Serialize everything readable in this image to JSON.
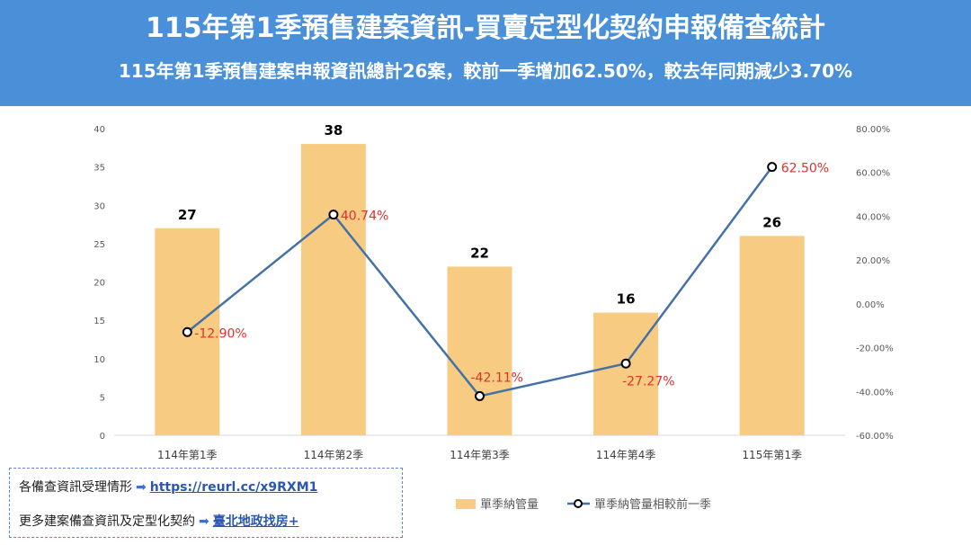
{
  "header": {
    "title": "115年第1季預售建案資訊-買賣定型化契約申報備查統計",
    "subtitle": "115年第1季預售建案申報資訊總計26案，較前一季增加62.50%，較去年同期減少3.70%",
    "background_color": "#4a90d9"
  },
  "info": {
    "line1_label": "各備查資訊受理情形",
    "line1_link": "https://reurl.cc/x9RXM1",
    "line2_label": "更多建案備查資訊及定型化契約",
    "line2_link": "臺北地政找房+"
  },
  "chart_data": {
    "type": "bar",
    "categories": [
      "114年第1季",
      "114年第2季",
      "114年第3季",
      "114年第4季",
      "115年第1季"
    ],
    "series": [
      {
        "name": "單季納管量",
        "kind": "bar",
        "axis": "left",
        "values": [
          27,
          38,
          22,
          16,
          26
        ],
        "labels": [
          "27",
          "38",
          "22",
          "16",
          "26"
        ],
        "color": "#f8cb83"
      },
      {
        "name": "單季納管量相較前一季",
        "kind": "line",
        "axis": "right",
        "values": [
          -12.9,
          40.74,
          -42.11,
          -27.27,
          62.5
        ],
        "labels": [
          "-12.90%",
          "40.74%",
          "-42.11%",
          "-27.27%",
          "62.50%"
        ],
        "color": "#4472a8",
        "label_color": "#e0302c"
      }
    ],
    "y_left": {
      "ylim": [
        0,
        40
      ],
      "ticks": [
        "0",
        "5",
        "10",
        "15",
        "20",
        "25",
        "30",
        "35",
        "40"
      ]
    },
    "y_right": {
      "ylim": [
        -60,
        80
      ],
      "ticks": [
        "-60.00%",
        "-40.00%",
        "-20.00%",
        "0.00%",
        "20.00%",
        "40.00%",
        "60.00%",
        "80.00%"
      ]
    },
    "legend_position": "bottom-right",
    "grid": false
  }
}
